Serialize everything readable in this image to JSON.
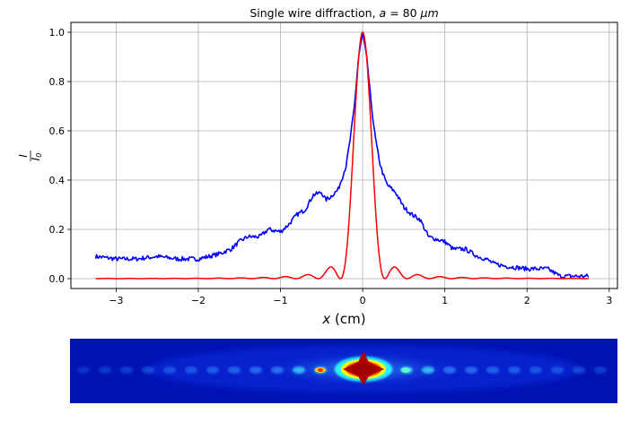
{
  "chart_data": [
    {
      "type": "line",
      "title": "Single wire diffraction, a = 80 μm",
      "title_parts": {
        "prefix": "Single wire diffraction, ",
        "var": "a",
        "mid": " = 80 ",
        "unit": "μm"
      },
      "xlabel": "x (cm)",
      "xlabel_parts": {
        "var": "x",
        "rest": " (cm)"
      },
      "ylabel": "I / I0",
      "ylabel_parts": {
        "num": "I",
        "den": "I",
        "den_sub": "0"
      },
      "xlim": [
        -3.55,
        3.1
      ],
      "ylim": [
        -0.04,
        1.04
      ],
      "grid": true,
      "x_ticks": [
        -3,
        -2,
        -1,
        0,
        1,
        2,
        3
      ],
      "x_tick_labels": [
        "−3",
        "−2",
        "−1",
        "0",
        "1",
        "2",
        "3"
      ],
      "y_ticks": [
        0.0,
        0.2,
        0.4,
        0.6,
        0.8,
        1.0
      ],
      "y_tick_labels": [
        "0.0",
        "0.2",
        "0.4",
        "0.6",
        "0.8",
        "1.0"
      ],
      "series": [
        {
          "color": "#0000ff",
          "x": [
            -3.25,
            -3.0,
            -2.75,
            -2.5,
            -2.25,
            -2.0,
            -1.75,
            -1.6,
            -1.5,
            -1.4,
            -1.25,
            -1.15,
            -1.0,
            -0.9,
            -0.8,
            -0.7,
            -0.6,
            -0.5,
            -0.45,
            -0.4,
            -0.3,
            -0.2,
            -0.15,
            -0.1,
            -0.05,
            0.0,
            0.05,
            0.1,
            0.15,
            0.2,
            0.25,
            0.3,
            0.4,
            0.5,
            0.6,
            0.7,
            0.8,
            0.9,
            1.0,
            1.1,
            1.25,
            1.4,
            1.5,
            1.6,
            1.75,
            2.0,
            2.25,
            2.4,
            2.5,
            2.6,
            2.75
          ],
          "y": [
            0.09,
            0.08,
            0.08,
            0.09,
            0.08,
            0.08,
            0.1,
            0.12,
            0.15,
            0.17,
            0.17,
            0.2,
            0.19,
            0.22,
            0.26,
            0.28,
            0.34,
            0.35,
            0.32,
            0.33,
            0.36,
            0.46,
            0.57,
            0.7,
            0.9,
            1.0,
            0.9,
            0.72,
            0.58,
            0.48,
            0.42,
            0.38,
            0.35,
            0.29,
            0.26,
            0.24,
            0.17,
            0.16,
            0.15,
            0.12,
            0.12,
            0.09,
            0.08,
            0.06,
            0.05,
            0.04,
            0.04,
            0.01,
            0.01,
            0.01,
            0.01
          ]
        },
        {
          "color": "#ff0000",
          "model": "sinc squared",
          "x_range": [
            -3.25,
            2.75
          ],
          "first_zero": 0.27,
          "secondary_peak_height": 0.05
        }
      ]
    },
    {
      "type": "heatmap",
      "colormap": "jet"
    }
  ]
}
